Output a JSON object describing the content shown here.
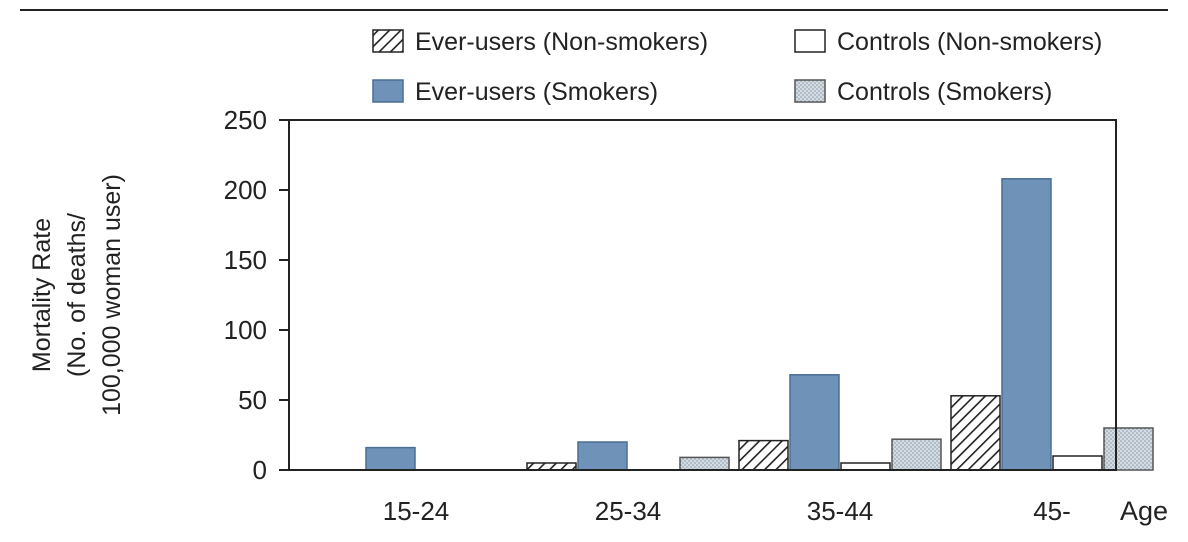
{
  "chart_data": {
    "type": "bar",
    "categories": [
      "15-24",
      "25-34",
      "35-44",
      "45-"
    ],
    "series": [
      {
        "name": "Ever-users (Non-smokers)",
        "pattern": "hatch",
        "values": [
          0,
          5,
          21,
          53
        ]
      },
      {
        "name": "Ever-users (Smokers)",
        "pattern": "solid",
        "values": [
          16,
          20,
          68,
          208
        ]
      },
      {
        "name": "Controls (Non-smokers)",
        "pattern": "open",
        "values": [
          0,
          0,
          5,
          10
        ]
      },
      {
        "name": "Controls (Smokers)",
        "pattern": "dotted",
        "values": [
          0,
          9,
          22,
          30
        ]
      }
    ],
    "title": "",
    "xlabel": "Age",
    "ylabel_lines": [
      "Mortality Rate",
      "(No. of deaths/",
      "100,000 woman user)"
    ],
    "ylim": [
      0,
      250
    ],
    "yticks": [
      0,
      50,
      100,
      150,
      200,
      250
    ],
    "grid": false,
    "legend_position": "top",
    "colors": {
      "solid_fill": "#6f93b8",
      "solid_stroke": "#4a6e94",
      "axis": "#222222",
      "dotted_fill": "#d3dbe3"
    }
  }
}
